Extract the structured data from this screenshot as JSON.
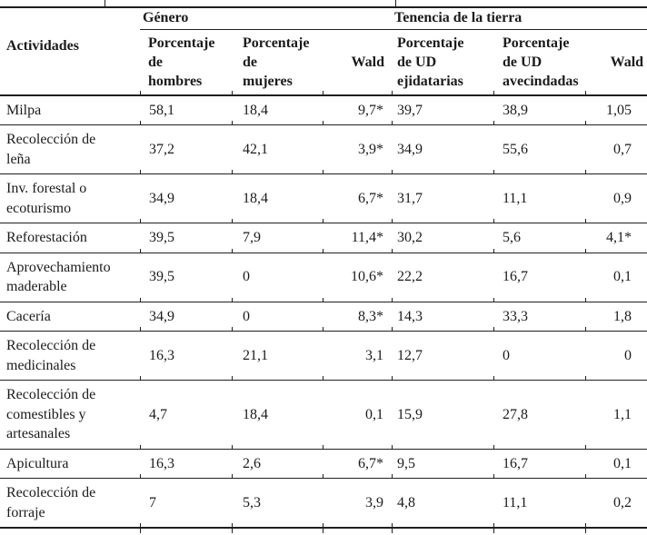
{
  "table": {
    "activities_header": "Actividades",
    "group_headers": {
      "genero": "Género",
      "tenencia": "Tenencia de la tierra"
    },
    "sub_headers": [
      "Porcentaje\nde\nhombres",
      "Porcentaje\nde\nmujeres",
      "Wald",
      "Porcentaje\nde UD\nejidatarias",
      "Porcentaje\nde UD\navecindadas",
      "Wald"
    ],
    "rows": [
      {
        "activity": "Milpa",
        "values": [
          "58,1",
          "18,4",
          "9,7*",
          "39,7",
          "38,9",
          "1,05"
        ]
      },
      {
        "activity": "Recolección de\nleña",
        "values": [
          "37,2",
          "42,1",
          "3,9*",
          "34,9",
          "55,6",
          "0,7"
        ]
      },
      {
        "activity": "Inv. forestal o\necoturismo",
        "values": [
          "34,9",
          "18,4",
          "6,7*",
          "31,7",
          "11,1",
          "0,9"
        ]
      },
      {
        "activity": "Reforestación",
        "values": [
          "39,5",
          "7,9",
          "11,4*",
          "30,2",
          "5,6",
          "4,1*"
        ]
      },
      {
        "activity": "Aprovechamiento\nmaderable",
        "values": [
          "39,5",
          "0",
          "10,6*",
          "22,2",
          "16,7",
          "0,1"
        ]
      },
      {
        "activity": "Cacería",
        "values": [
          "34,9",
          "0",
          "8,3*",
          "14,3",
          "33,3",
          "1,8"
        ]
      },
      {
        "activity": "Recolección de\nmedicinales",
        "values": [
          "16,3",
          "21,1",
          "3,1",
          "12,7",
          "0",
          "0"
        ]
      },
      {
        "activity": "Recolección de\ncomestibles y\nartesanales",
        "values": [
          "4,7",
          "18,4",
          "0,1",
          "15,9",
          "27,8",
          "1,1"
        ]
      },
      {
        "activity": "Apicultura",
        "values": [
          "16,3",
          "2,6",
          "6,7*",
          "9,5",
          "16,7",
          "0,1"
        ]
      },
      {
        "activity": "Recolección de\nforraje",
        "values": [
          "7",
          "5,3",
          "3,9",
          "4,8",
          "11,1",
          "0,2"
        ]
      }
    ]
  },
  "colors": {
    "text": "#1b1b1b",
    "rule": "#1f1f1f",
    "background": "#ffffff"
  }
}
